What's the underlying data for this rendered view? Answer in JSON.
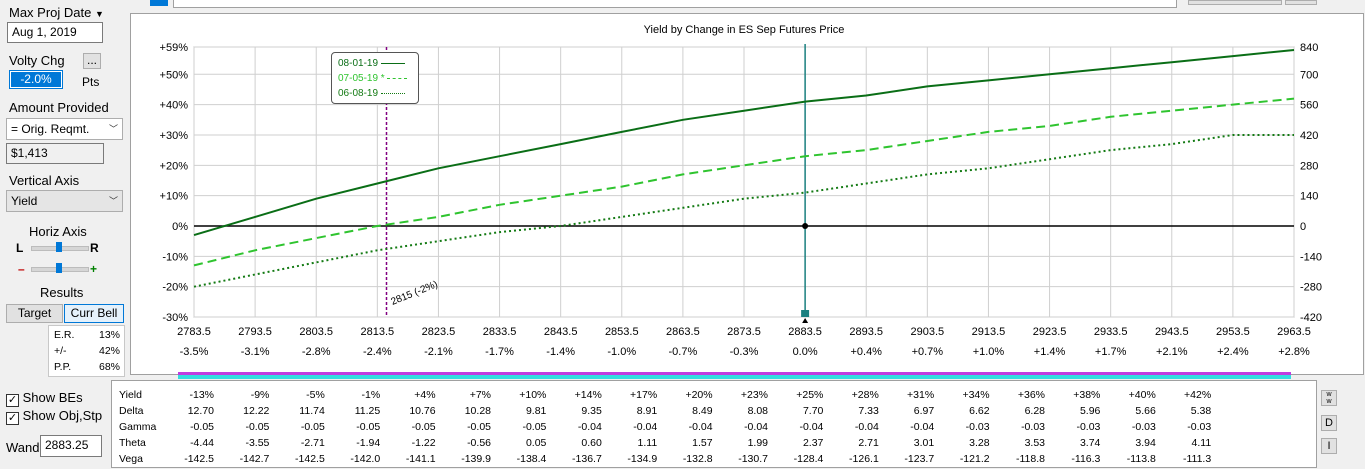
{
  "panel": {
    "max_proj_date_label": "Max Proj Date",
    "max_proj_date_value": "Aug 1, 2019",
    "volty_label": "Volty Chg",
    "volty_value": "-2.0%",
    "volty_unit": "Pts",
    "more_button": "...",
    "amount_label": "Amount Provided",
    "amount_option": "= Orig. Reqmt.",
    "amount_value": "$1,413",
    "vertical_axis_label": "Vertical Axis",
    "vertical_axis_option": "Yield",
    "horiz_axis_label": "Horiz Axis",
    "slider_left": "L",
    "slider_right": "R",
    "slider_minus": "–",
    "slider_plus": "+",
    "results_label": "Results",
    "target_button": "Target",
    "curr_bell_button": "Curr Bell",
    "stats": [
      {
        "label": "E.R.",
        "value": "13%"
      },
      {
        "label": "+/-",
        "value": "42%"
      },
      {
        "label": "P.P.",
        "value": "68%"
      }
    ],
    "show_bes": "Show BEs",
    "show_obj": "Show Obj,Stp",
    "wand_label": "Wand",
    "wand_value": "2883.25"
  },
  "colors": {
    "dark_green": "#0a6e16",
    "mid_green": "#2fc42f",
    "dotted_green": "#137a13",
    "purple_line": "#800080",
    "teal_line": "#1b8080",
    "band_magenta": "#c03ce0",
    "band_cyan": "#33dde0"
  },
  "chart_data": {
    "type": "line",
    "title": "Yield by Change in ES Sep Futures Price",
    "x": [
      2783.5,
      2793.5,
      2803.5,
      2813.5,
      2823.5,
      2833.5,
      2843.5,
      2853.5,
      2863.5,
      2873.5,
      2883.5,
      2893.5,
      2903.5,
      2913.5,
      2923.5,
      2933.5,
      2943.5,
      2953.5,
      2963.5
    ],
    "x_pct_labels": [
      "-3.5%",
      "-3.1%",
      "-2.8%",
      "-2.4%",
      "-2.1%",
      "-1.7%",
      "-1.4%",
      "-1.0%",
      "-0.7%",
      "-0.3%",
      "0.0%",
      "+0.4%",
      "+0.7%",
      "+1.0%",
      "+1.4%",
      "+1.7%",
      "+2.1%",
      "+2.4%",
      "+2.8%"
    ],
    "ylim": [
      -30,
      59
    ],
    "left_ticks": [
      "+59%",
      "+50%",
      "+40%",
      "+30%",
      "+20%",
      "+10%",
      "0%",
      "-10%",
      "-20%",
      "-30%"
    ],
    "left_tick_values": [
      59,
      50,
      40,
      30,
      20,
      10,
      0,
      -10,
      -20,
      -30
    ],
    "right_ticks": [
      "840",
      "700",
      "560",
      "420",
      "280",
      "140",
      "0",
      "-140",
      "-280",
      "-420"
    ],
    "series": [
      {
        "name": "08-01-19",
        "style": "solid",
        "values": [
          -3,
          3,
          9,
          14,
          19,
          23,
          27,
          31,
          35,
          38,
          41,
          43,
          46,
          48,
          50,
          52,
          54,
          56,
          58
        ]
      },
      {
        "name": "07-05-19",
        "style": "dashed",
        "values": [
          -13,
          -8,
          -4,
          0,
          3,
          7,
          10,
          13,
          17,
          20,
          23,
          25,
          28,
          31,
          33,
          36,
          38,
          40,
          42
        ]
      },
      {
        "name": "06-08-19",
        "style": "dotted",
        "values": [
          -20,
          -16,
          -12,
          -8,
          -5,
          -2,
          0,
          3,
          6,
          9,
          11,
          14,
          17,
          19,
          22,
          25,
          27,
          30,
          30
        ]
      }
    ],
    "marker_label": "2815 (-2%)",
    "marker_x": 2815,
    "current_x": 2883.5
  },
  "table": {
    "rows": [
      {
        "label": "Yield",
        "values": [
          "-13%",
          "-9%",
          "-5%",
          "-1%",
          "+4%",
          "+7%",
          "+10%",
          "+14%",
          "+17%",
          "+20%",
          "+23%",
          "+25%",
          "+28%",
          "+31%",
          "+34%",
          "+36%",
          "+38%",
          "+40%",
          "+42%"
        ]
      },
      {
        "label": "Delta",
        "values": [
          "12.70",
          "12.22",
          "11.74",
          "11.25",
          "10.76",
          "10.28",
          "9.81",
          "9.35",
          "8.91",
          "8.49",
          "8.08",
          "7.70",
          "7.33",
          "6.97",
          "6.62",
          "6.28",
          "5.96",
          "5.66",
          "5.38"
        ]
      },
      {
        "label": "Gamma",
        "values": [
          "-0.05",
          "-0.05",
          "-0.05",
          "-0.05",
          "-0.05",
          "-0.05",
          "-0.05",
          "-0.04",
          "-0.04",
          "-0.04",
          "-0.04",
          "-0.04",
          "-0.04",
          "-0.04",
          "-0.03",
          "-0.03",
          "-0.03",
          "-0.03",
          "-0.03"
        ]
      },
      {
        "label": "Theta",
        "values": [
          "-4.44",
          "-3.55",
          "-2.71",
          "-1.94",
          "-1.22",
          "-0.56",
          "0.05",
          "0.60",
          "1.11",
          "1.57",
          "1.99",
          "2.37",
          "2.71",
          "3.01",
          "3.28",
          "3.53",
          "3.74",
          "3.94",
          "4.11"
        ]
      },
      {
        "label": "Vega",
        "values": [
          "-142.5",
          "-142.7",
          "-142.5",
          "-142.0",
          "-141.1",
          "-139.9",
          "-138.4",
          "-136.7",
          "-134.9",
          "-132.8",
          "-130.7",
          "-128.4",
          "-126.1",
          "-123.7",
          "-121.2",
          "-118.8",
          "-116.3",
          "-113.8",
          "-111.3"
        ]
      }
    ]
  },
  "side_buttons": [
    "D",
    "I"
  ]
}
